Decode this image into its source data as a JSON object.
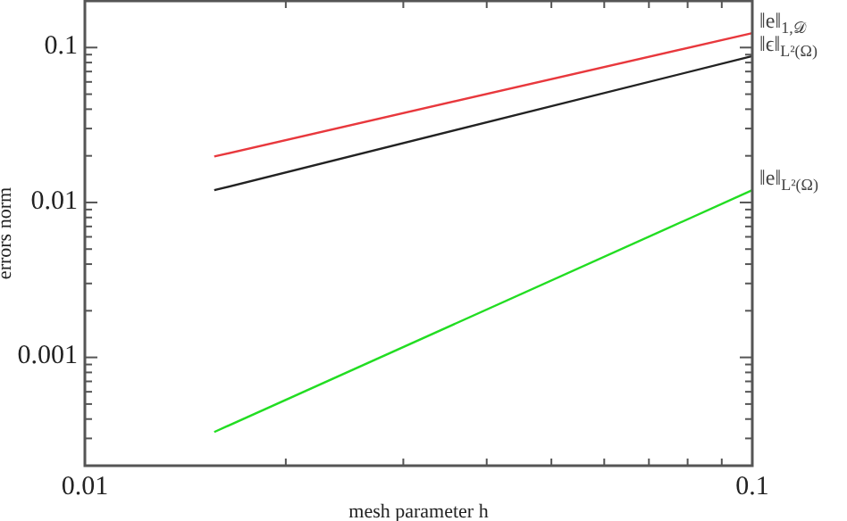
{
  "chart_data": {
    "type": "line",
    "xlabel": "mesh parameter h",
    "ylabel": "errors norm",
    "log": "xy",
    "x": [
      0.015625,
      0.1
    ],
    "series": [
      {
        "name": "‖e‖$_{1,𝒟}$",
        "color": "#e8383d",
        "values": [
          0.0198,
          0.124
        ]
      },
      {
        "name": "‖ϵ‖$_{L²(Ω)}$",
        "color": "#222222",
        "values": [
          0.012,
          0.088
        ]
      },
      {
        "name": "‖e‖$_{L²(Ω)}$",
        "color": "#22dd22",
        "values": [
          0.00033,
          0.012
        ]
      }
    ],
    "xlim": [
      0.01,
      0.1
    ],
    "ylim": [
      0.0002,
      0.2
    ],
    "xticks": [
      0.01,
      {
        "value": 0.02,
        "label": null
      },
      {
        "value": 0.03,
        "label": null
      },
      {
        "value": 0.04,
        "label": null
      },
      {
        "value": 0.05,
        "label": null
      },
      {
        "value": 0.06,
        "label": null
      },
      {
        "value": 0.07,
        "label": null
      },
      {
        "value": 0.08,
        "label": null
      },
      {
        "value": 0.09,
        "label": null
      },
      0.1
    ],
    "yticks": [
      {
        "value": 0.0002,
        "label": null
      },
      {
        "value": 0.0003,
        "label": null
      },
      {
        "value": 0.0004,
        "label": null
      },
      {
        "value": 0.0005,
        "label": null
      },
      {
        "value": 0.0006,
        "label": null
      },
      {
        "value": 0.0007,
        "label": null
      },
      {
        "value": 0.0008,
        "label": null
      },
      {
        "value": 0.0009,
        "label": null
      },
      0.001,
      {
        "value": 0.002,
        "label": null
      },
      {
        "value": 0.003,
        "label": null
      },
      {
        "value": 0.004,
        "label": null
      },
      {
        "value": 0.005,
        "label": null
      },
      {
        "value": 0.006,
        "label": null
      },
      {
        "value": 0.007,
        "label": null
      },
      {
        "value": 0.008,
        "label": null
      },
      {
        "value": 0.009,
        "label": null
      },
      0.01,
      {
        "value": 0.02,
        "label": null
      },
      {
        "value": 0.03,
        "label": null
      },
      {
        "value": 0.04,
        "label": null
      },
      {
        "value": 0.05,
        "label": null
      },
      {
        "value": 0.06,
        "label": null
      },
      {
        "value": 0.07,
        "label": null
      },
      {
        "value": 0.08,
        "label": null
      },
      {
        "value": 0.09,
        "label": null
      },
      0.1,
      {
        "value": 0.2,
        "label": null
      }
    ]
  }
}
